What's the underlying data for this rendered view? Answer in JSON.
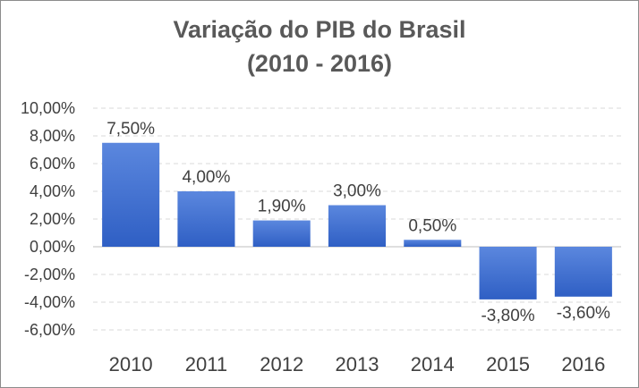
{
  "chart_data": {
    "type": "bar",
    "title": "Variação do PIB do Brasil",
    "subtitle": "(2010 - 2016)",
    "categories": [
      "2010",
      "2011",
      "2012",
      "2013",
      "2014",
      "2015",
      "2016"
    ],
    "values": [
      7.5,
      4.0,
      1.9,
      3.0,
      0.5,
      -3.8,
      -3.6
    ],
    "data_labels": [
      "7,50%",
      "4,00%",
      "1,90%",
      "3,00%",
      "0,50%",
      "-3,80%",
      "-3,60%"
    ],
    "ylim": [
      -6,
      10
    ],
    "yticks": [
      10,
      8,
      6,
      4,
      2,
      0,
      -2,
      -4,
      -6
    ],
    "ytick_labels": [
      "10,00%",
      "8,00%",
      "6,00%",
      "4,00%",
      "2,00%",
      "0,00%",
      "-2,00%",
      "-4,00%",
      "-6,00%"
    ],
    "xlabel": "",
    "ylabel": "",
    "grid": true,
    "colors": {
      "bar_top": "#5b87de",
      "bar_bottom": "#2f5fc4",
      "grid": "#d9d9d9",
      "axis": "#bfbfbf"
    }
  }
}
